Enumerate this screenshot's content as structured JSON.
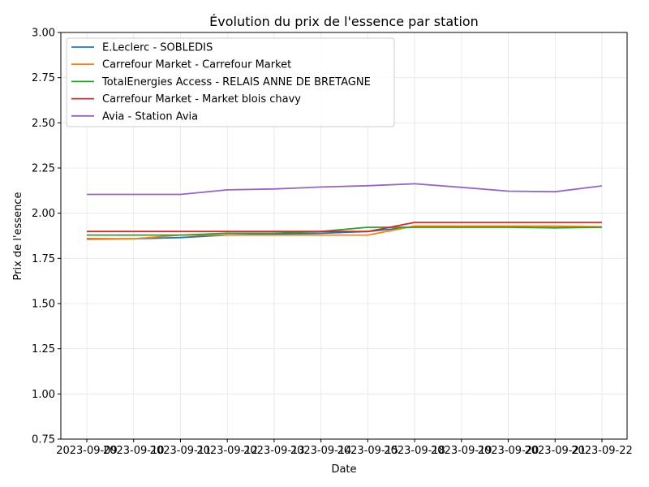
{
  "chart_data": {
    "type": "line",
    "title": "Évolution du prix de l'essence par station",
    "xlabel": "Date",
    "ylabel": "Prix de l'essence",
    "ylim": [
      0.75,
      3.0
    ],
    "yticks": [
      "0.75",
      "1.00",
      "1.25",
      "1.50",
      "1.75",
      "2.00",
      "2.25",
      "2.50",
      "2.75",
      "3.00"
    ],
    "x": [
      "2023-09-09",
      "2023-09-10",
      "2023-09-11",
      "2023-09-12",
      "2023-09-13",
      "2023-09-14",
      "2023-09-15",
      "2023-09-18",
      "2023-09-19",
      "2023-09-20",
      "2023-09-21",
      "2023-09-22"
    ],
    "grid": true,
    "legend_position": "top-left",
    "series": [
      {
        "name": "E.Leclerc - SOBLEDIS",
        "color": "#1f77b4",
        "values": [
          1.859,
          1.859,
          1.865,
          1.879,
          1.885,
          1.889,
          1.899,
          1.925,
          1.925,
          1.925,
          1.919,
          1.925
        ]
      },
      {
        "name": "Carrefour Market - Carrefour Market",
        "color": "#ff7f0e",
        "values": [
          1.855,
          1.859,
          1.879,
          1.879,
          1.879,
          1.879,
          1.879,
          1.929,
          1.929,
          1.929,
          1.929,
          1.925
        ]
      },
      {
        "name": "TotalEnergies Access - RELAIS ANNE DE BRETAGNE",
        "color": "#2ca02c",
        "values": [
          1.879,
          1.879,
          1.879,
          1.889,
          1.889,
          1.899,
          1.922,
          1.922,
          1.922,
          1.922,
          1.919,
          1.922
        ]
      },
      {
        "name": "Carrefour Market - Market blois chavy",
        "color": "#d62728",
        "values": [
          1.899,
          1.899,
          1.899,
          1.899,
          1.899,
          1.899,
          1.899,
          1.949,
          1.949,
          1.949,
          1.949,
          1.949
        ]
      },
      {
        "name": "Avia - Station Avia",
        "color": "#9467bd",
        "values": [
          2.104,
          2.104,
          2.104,
          2.129,
          2.134,
          2.145,
          2.152,
          2.163,
          2.143,
          2.122,
          2.119,
          2.151
        ]
      }
    ]
  }
}
